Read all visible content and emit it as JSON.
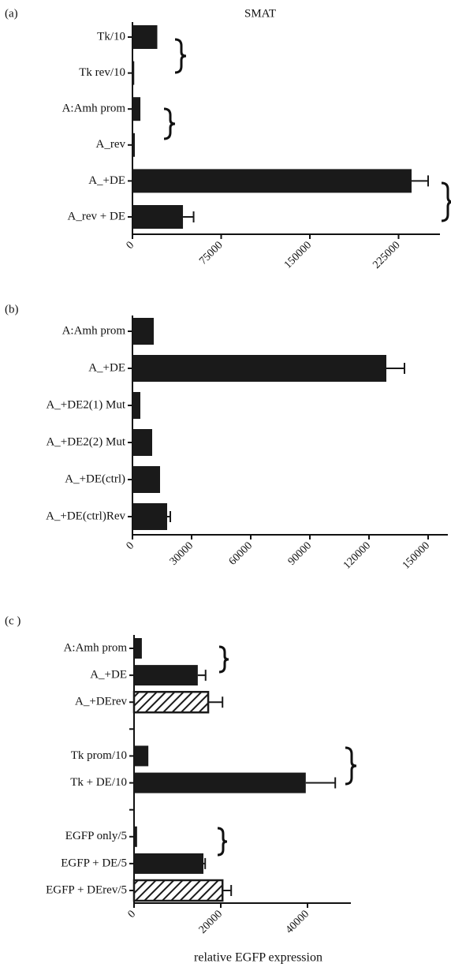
{
  "chart_data": [
    {
      "type": "bar",
      "panel_label": "(a)",
      "title": "SMAT",
      "categories": [
        "Tk/10",
        "Tk rev/10",
        "A:Amh prom",
        "A_rev",
        "A_+DE",
        "A_rev + DE"
      ],
      "values": [
        21000,
        1500,
        6700,
        2000,
        236000,
        42700
      ],
      "errors": [
        null,
        null,
        null,
        null,
        14000,
        9000
      ],
      "color": "#1a1a1a",
      "xlim": [
        0,
        260000
      ],
      "xticks": [
        0,
        75000,
        150000,
        225000
      ]
    },
    {
      "type": "bar",
      "panel_label": "(b)",
      "categories": [
        "A:Amh prom",
        "A_+DE",
        "A_+DE2(1) Mut",
        "A_+DE2(2) Mut",
        "A_+DE(ctrl)",
        "A_+DE(ctrl)Rev"
      ],
      "values": [
        10800,
        128800,
        4000,
        10000,
        14000,
        17600
      ],
      "errors": [
        null,
        9200,
        null,
        null,
        null,
        1600
      ],
      "color": "#1a1a1a",
      "xlim": [
        0,
        160000
      ],
      "xticks": [
        0,
        30000,
        60000,
        90000,
        120000,
        150000
      ]
    },
    {
      "type": "bar",
      "panel_label": "(c )",
      "xlabel": "relative  EGFP  expression",
      "categories": [
        "A:Amh prom",
        "A_+DE",
        "A_+DErev",
        null,
        "Tk prom/10",
        "Tk + DE/10",
        null,
        "EGFP only/5",
        "EGFP + DE/5",
        "EGFP + DErev/5"
      ],
      "values": [
        1800,
        14700,
        17100,
        null,
        3300,
        39600,
        null,
        700,
        16000,
        20400
      ],
      "errors": [
        null,
        1800,
        3300,
        null,
        null,
        6800,
        null,
        null,
        400,
        2000
      ],
      "fill_patterns": [
        "solid",
        "solid",
        "hatch",
        null,
        "solid",
        "solid",
        null,
        "solid",
        "solid",
        "hatch"
      ],
      "color": "#1a1a1a",
      "xlim": [
        0,
        50000
      ],
      "xticks": [
        0,
        20000,
        40000
      ]
    }
  ]
}
